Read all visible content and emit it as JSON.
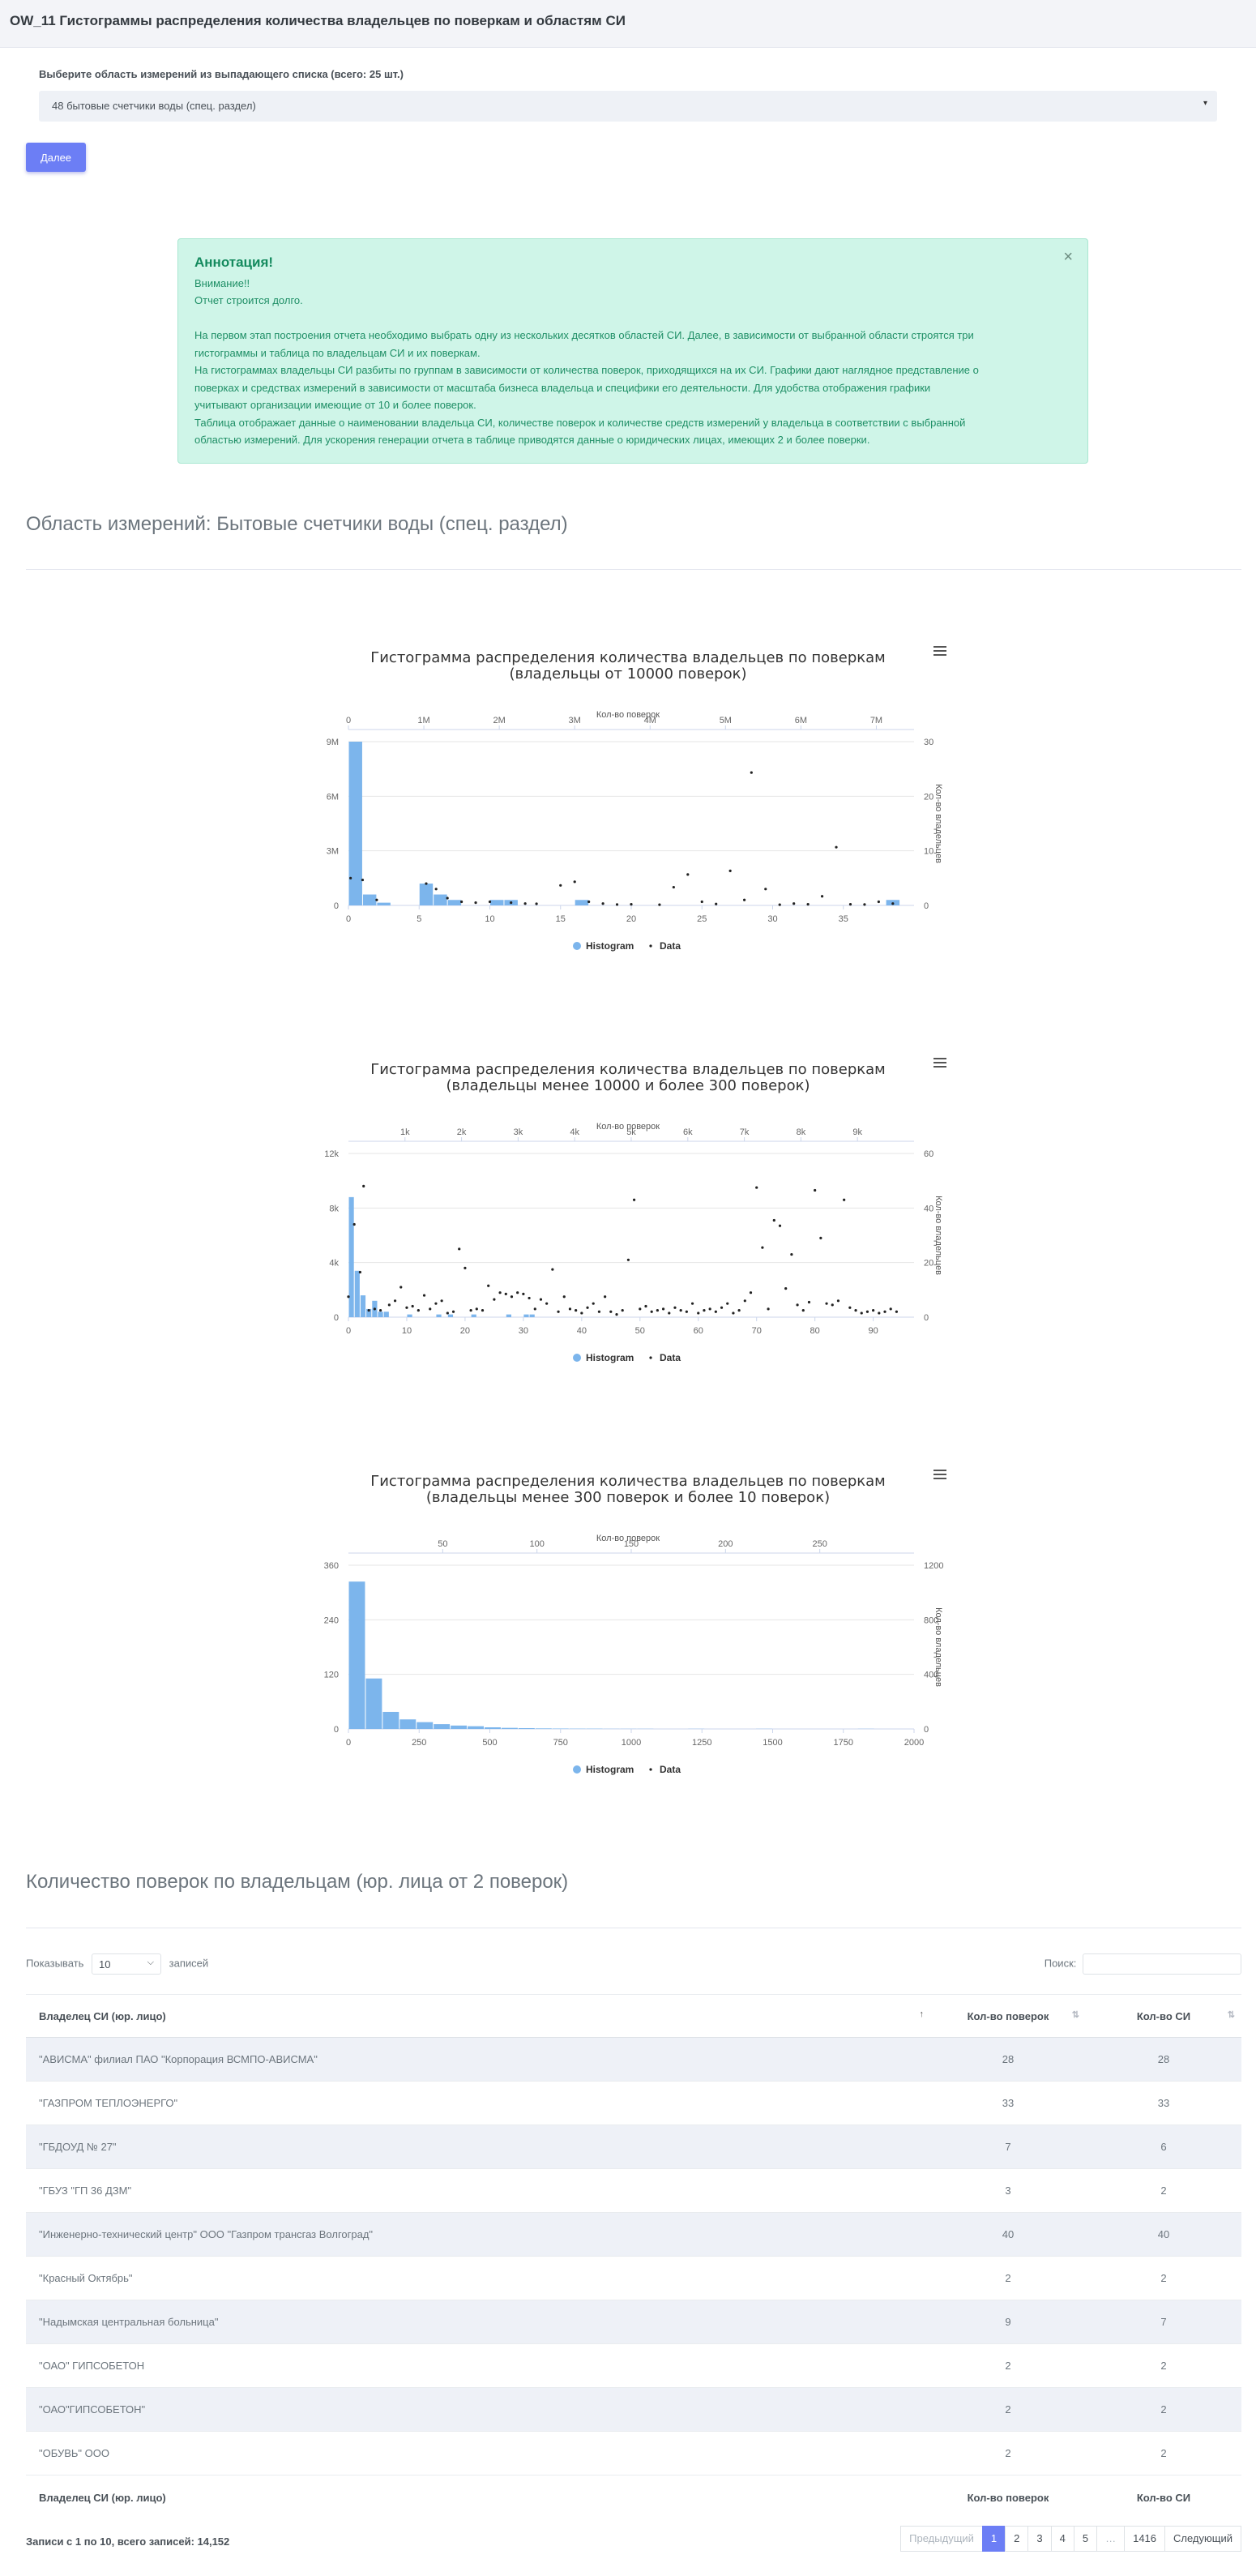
{
  "header": {
    "title": "OW_11 Гистограммы распределения количества владельцев по поверкам и областям СИ"
  },
  "form": {
    "label": "Выберите область измерений из выпадающего списка (всего: 25 шт.)",
    "selected": "48 бытовые счетчики воды (спец. раздел)",
    "next_button": "Далее"
  },
  "alert": {
    "title": "Аннотация!",
    "close": "×",
    "lines": [
      "Внимание!!",
      "Отчет строится долго.",
      "",
      "На первом этап построения отчета необходимо выбрать одну из нескольких десятков областей СИ. Далее, в зависимости от выбранной области строятся три",
      "гистограммы и таблица по владельцам СИ и их поверкам.",
      "На гистограммах владельцы СИ разбиты по группам в зависимости от количества поверок, приходящихся на их СИ. Графики дают наглядное представление о",
      "поверках и средствах измерений в зависимости от масштаба бизнеса владельца и специфики его деятельности. Для удобства отображения графики",
      "учитывают организации имеющие от 10 и более поверок.",
      "Таблица отображает данные о наименовании владельца СИ, количестве поверок и количестве средств измерений у владельца в соответствии с выбранной",
      "областью измерений. Для ускорения генерации отчета в таблице приводятся данные о юридических лицах, имеющих 2 и более поверки."
    ]
  },
  "section1_title": "Область измерений: Бытовые счетчики воды (спец. раздел)",
  "section2_title": "Количество поверок по владельцам (юр. лица от 2 поверок)",
  "chart_data": [
    {
      "type": "histogram+scatter",
      "title": "Гистограмма распределения количества владельцев по поверкам",
      "subtitle": "(владельцы от 10000 поверок)",
      "top_axis_title": "Кол-во поверок",
      "top_ticks": [
        "0",
        "1M",
        "2M",
        "3M",
        "4M",
        "5M",
        "6M",
        "7M"
      ],
      "top_max": 7500000,
      "bottom_ticks": [
        0,
        5,
        10,
        15,
        20,
        25,
        30,
        35
      ],
      "bottom_max": 40,
      "left_ticks": [
        "0",
        "3M",
        "6M",
        "9M"
      ],
      "left_max": 9000000,
      "right_axis_title": "Кол-во владельцев",
      "right_ticks": [
        0,
        10,
        20,
        30
      ],
      "right_max": 30,
      "histogram": [
        {
          "bin": 0,
          "value": 30
        },
        {
          "bin": 1,
          "value": 2
        },
        {
          "bin": 2,
          "value": 0.5
        },
        {
          "bin": 5,
          "value": 4
        },
        {
          "bin": 6,
          "value": 2
        },
        {
          "bin": 7,
          "value": 1
        },
        {
          "bin": 10,
          "value": 1
        },
        {
          "bin": 11,
          "value": 1
        },
        {
          "bin": 16,
          "value": 1
        },
        {
          "bin": 38,
          "value": 1
        }
      ],
      "points": [
        [
          0.15,
          1500000
        ],
        [
          1,
          1400000
        ],
        [
          2,
          300000
        ],
        [
          5.5,
          1200000
        ],
        [
          6.2,
          900000
        ],
        [
          7,
          400000
        ],
        [
          8,
          200000
        ],
        [
          9,
          150000
        ],
        [
          10,
          200000
        ],
        [
          11.5,
          150000
        ],
        [
          12.5,
          100000
        ],
        [
          13.3,
          90000
        ],
        [
          15,
          1100000
        ],
        [
          16,
          1300000
        ],
        [
          17,
          200000
        ],
        [
          18,
          100000
        ],
        [
          19,
          50000
        ],
        [
          20,
          60000
        ],
        [
          22,
          40000
        ],
        [
          23,
          1000000
        ],
        [
          24,
          1700000
        ],
        [
          25,
          200000
        ],
        [
          26,
          80000
        ],
        [
          27,
          1900000
        ],
        [
          28,
          300000
        ],
        [
          28.5,
          7300000
        ],
        [
          29.5,
          900000
        ],
        [
          30.5,
          40000
        ],
        [
          31.5,
          100000
        ],
        [
          32.5,
          60000
        ],
        [
          33.5,
          500000
        ],
        [
          34.5,
          3200000
        ],
        [
          35.5,
          60000
        ],
        [
          36.5,
          50000
        ],
        [
          37.5,
          200000
        ],
        [
          38.5,
          100000
        ]
      ],
      "legend": [
        "Histogram",
        "Data"
      ]
    },
    {
      "type": "histogram+scatter",
      "title": "Гистограмма распределения количества владельцев по поверкам",
      "subtitle": "(владельцы менее 10000 и более 300 поверок)",
      "top_axis_title": "Кол-во поверок",
      "top_ticks": [
        "1k",
        "2k",
        "3k",
        "4k",
        "5k",
        "6k",
        "7k",
        "8k",
        "9k"
      ],
      "top_max": 10000,
      "bottom_ticks": [
        0,
        10,
        20,
        30,
        40,
        50,
        60,
        70,
        80,
        90
      ],
      "bottom_max": 97,
      "left_ticks": [
        "0",
        "4k",
        "8k",
        "12k"
      ],
      "left_max": 12000,
      "right_axis_title": "Кол-во владельцев",
      "right_ticks": [
        0,
        20,
        40,
        60
      ],
      "right_max": 60,
      "histogram": [
        {
          "bin": 0,
          "value": 44
        },
        {
          "bin": 1,
          "value": 17
        },
        {
          "bin": 2,
          "value": 8
        },
        {
          "bin": 3,
          "value": 3
        },
        {
          "bin": 4,
          "value": 6
        },
        {
          "bin": 5,
          "value": 2
        },
        {
          "bin": 6,
          "value": 2
        },
        {
          "bin": 10,
          "value": 1
        },
        {
          "bin": 15,
          "value": 1
        },
        {
          "bin": 17,
          "value": 1
        },
        {
          "bin": 21,
          "value": 1
        },
        {
          "bin": 27,
          "value": 1
        },
        {
          "bin": 30,
          "value": 1
        },
        {
          "bin": 31,
          "value": 1
        }
      ],
      "points": [
        [
          0,
          1500
        ],
        [
          1,
          6800
        ],
        [
          2,
          3300
        ],
        [
          2.6,
          9600
        ],
        [
          3.5,
          500
        ],
        [
          4.5,
          600
        ],
        [
          5.5,
          500
        ],
        [
          7,
          900
        ],
        [
          8,
          1200
        ],
        [
          9,
          2200
        ],
        [
          10,
          700
        ],
        [
          11,
          800
        ],
        [
          12,
          500
        ],
        [
          13,
          1600
        ],
        [
          14,
          600
        ],
        [
          15,
          1000
        ],
        [
          16,
          1200
        ],
        [
          17,
          300
        ],
        [
          18,
          400
        ],
        [
          19,
          5000
        ],
        [
          20,
          3600
        ],
        [
          21,
          500
        ],
        [
          22,
          600
        ],
        [
          23,
          500
        ],
        [
          24,
          2300
        ],
        [
          25,
          1300
        ],
        [
          26,
          1800
        ],
        [
          27,
          1700
        ],
        [
          28,
          1500
        ],
        [
          29,
          1800
        ],
        [
          30,
          1700
        ],
        [
          31,
          1400
        ],
        [
          32,
          600
        ],
        [
          33,
          1300
        ],
        [
          34,
          1000
        ],
        [
          35,
          3500
        ],
        [
          36,
          400
        ],
        [
          37,
          1500
        ],
        [
          38,
          600
        ],
        [
          39,
          500
        ],
        [
          40,
          300
        ],
        [
          41,
          700
        ],
        [
          42,
          1000
        ],
        [
          43,
          400
        ],
        [
          44,
          1500
        ],
        [
          45,
          400
        ],
        [
          46,
          200
        ],
        [
          47,
          500
        ],
        [
          48,
          4200
        ],
        [
          49,
          8600
        ],
        [
          50,
          600
        ],
        [
          51,
          800
        ],
        [
          52,
          400
        ],
        [
          53,
          500
        ],
        [
          54,
          600
        ],
        [
          55,
          300
        ],
        [
          56,
          700
        ],
        [
          57,
          500
        ],
        [
          58,
          400
        ],
        [
          59,
          1000
        ],
        [
          60,
          300
        ],
        [
          61,
          500
        ],
        [
          62,
          600
        ],
        [
          63,
          400
        ],
        [
          64,
          700
        ],
        [
          65,
          1000
        ],
        [
          66,
          300
        ],
        [
          67,
          500
        ],
        [
          68,
          1200
        ],
        [
          69,
          1800
        ],
        [
          70,
          9500
        ],
        [
          71,
          5100
        ],
        [
          72,
          600
        ],
        [
          73,
          7100
        ],
        [
          74,
          6700
        ],
        [
          75,
          2100
        ],
        [
          76,
          4600
        ],
        [
          77,
          900
        ],
        [
          78,
          500
        ],
        [
          79,
          1100
        ],
        [
          80,
          9300
        ],
        [
          81,
          5800
        ],
        [
          82,
          1000
        ],
        [
          83,
          900
        ],
        [
          84,
          1200
        ],
        [
          85,
          8600
        ],
        [
          86,
          700
        ],
        [
          87,
          500
        ],
        [
          88,
          300
        ],
        [
          89,
          400
        ],
        [
          90,
          500
        ],
        [
          91,
          300
        ],
        [
          92,
          400
        ],
        [
          93,
          600
        ],
        [
          94,
          400
        ]
      ],
      "legend": [
        "Histogram",
        "Data"
      ]
    },
    {
      "type": "histogram+scatter",
      "title": "Гистограмма распределения количества владельцев по поверкам",
      "subtitle": "(владельцы менее 300 поверок и более 10 поверок)",
      "top_axis_title": "Кол-во поверок",
      "top_ticks": [
        "50",
        "100",
        "150",
        "200",
        "250"
      ],
      "top_max": 300,
      "bottom_ticks": [
        0,
        250,
        500,
        750,
        1000,
        1250,
        1500,
        1750,
        2000
      ],
      "bottom_max": 2000,
      "left_ticks": [
        "0",
        "120",
        "240",
        "360"
      ],
      "left_max": 360,
      "right_axis_title": "Кол-во владельцев",
      "right_ticks": [
        0,
        400,
        800,
        1200
      ],
      "right_max": 1200,
      "histogram": [
        {
          "bin": 0,
          "value": 1080
        },
        {
          "bin": 1,
          "value": 370
        },
        {
          "bin": 2,
          "value": 125
        },
        {
          "bin": 3,
          "value": 70
        },
        {
          "bin": 4,
          "value": 50
        },
        {
          "bin": 5,
          "value": 35
        },
        {
          "bin": 6,
          "value": 25
        },
        {
          "bin": 7,
          "value": 20
        },
        {
          "bin": 8,
          "value": 12
        },
        {
          "bin": 9,
          "value": 8
        },
        {
          "bin": 10,
          "value": 6
        },
        {
          "bin": 11,
          "value": 4
        },
        {
          "bin": 12,
          "value": 3
        },
        {
          "bin": 13,
          "value": 2
        },
        {
          "bin": 14,
          "value": 2
        },
        {
          "bin": 15,
          "value": 1
        },
        {
          "bin": 16,
          "value": 1
        },
        {
          "bin": 17,
          "value": 1
        },
        {
          "bin": 20,
          "value": 1
        },
        {
          "bin": 24,
          "value": 1
        },
        {
          "bin": 30,
          "value": 1
        }
      ],
      "bin_width": 60,
      "points": [],
      "legend": [
        "Histogram",
        "Data"
      ]
    }
  ],
  "table": {
    "show_prefix": "Показывать",
    "show_value": "10",
    "show_suffix": "записей",
    "search_label": "Поиск:",
    "columns": [
      "Владелец СИ (юр. лицо)",
      "Кол-во поверок",
      "Кол-во СИ"
    ],
    "rows": [
      [
        "\"АВИСМА\" филиал ПАО \"Корпорация ВСМПО-АВИСМА\"",
        "28",
        "28"
      ],
      [
        "\"ГАЗПРОМ ТЕПЛОЭНЕРГО\"",
        "33",
        "33"
      ],
      [
        "\"ГБДОУД № 27\"",
        "7",
        "6"
      ],
      [
        "\"ГБУЗ \"ГП 36 ДЗМ\"",
        "3",
        "2"
      ],
      [
        "\"Инженерно-технический центр\" ООО \"Газпром трансгаз Волгоград\"",
        "40",
        "40"
      ],
      [
        "\"Красный Октябрь\"",
        "2",
        "2"
      ],
      [
        "\"Надымская центральная больница\"",
        "9",
        "7"
      ],
      [
        "\"ОАО\" ГИПСОБЕТОН",
        "2",
        "2"
      ],
      [
        "\"ОАО\"ГИПСОБЕТОН\"",
        "2",
        "2"
      ],
      [
        "\"ОБУВЬ\" ООО",
        "2",
        "2"
      ]
    ],
    "info": "Записи с 1 по 10, всего записей: 14,152",
    "pager": [
      "Предыдущий",
      "1",
      "2",
      "3",
      "4",
      "5",
      "…",
      "1416",
      "Следующий"
    ]
  },
  "colors": {
    "bar": "#7cb5ec",
    "accent": "#6c7ef5",
    "alert_bg": "#cff5e8"
  }
}
